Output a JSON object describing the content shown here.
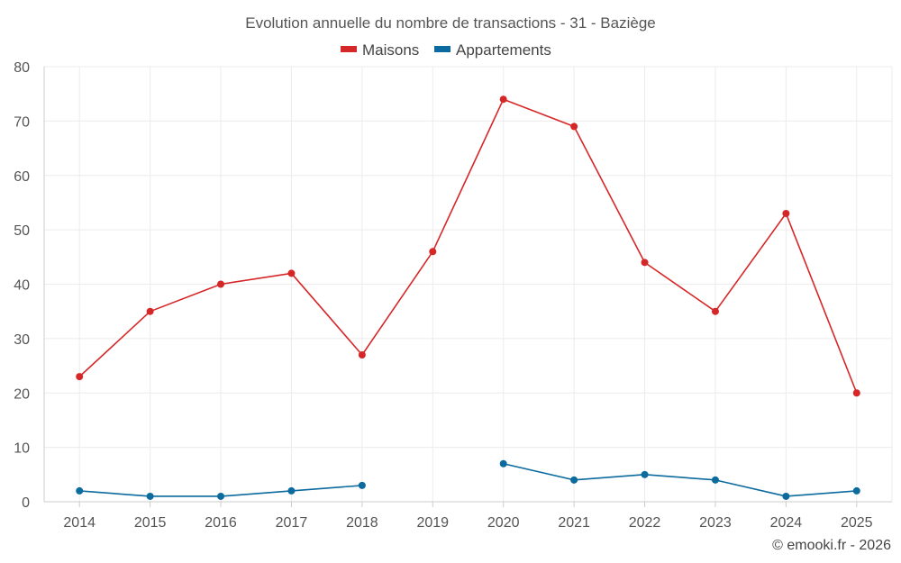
{
  "chart_data": {
    "type": "line",
    "title": "Evolution annuelle du nombre de transactions - 31 - Baziège",
    "categories": [
      "2014",
      "2015",
      "2016",
      "2017",
      "2018",
      "2019",
      "2020",
      "2021",
      "2022",
      "2023",
      "2024",
      "2025"
    ],
    "series": [
      {
        "name": "Maisons",
        "color": "#d62728",
        "values": [
          23,
          35,
          40,
          42,
          27,
          46,
          74,
          69,
          44,
          35,
          53,
          20
        ]
      },
      {
        "name": "Appartements",
        "color": "#0b6a9e",
        "values": [
          2,
          1,
          1,
          2,
          3,
          null,
          7,
          4,
          5,
          4,
          1,
          2
        ]
      }
    ],
    "ylim": [
      0,
      80
    ],
    "yticks": [
      0,
      10,
      20,
      30,
      40,
      50,
      60,
      70,
      80
    ],
    "xlabel": "",
    "ylabel": "",
    "grid": true,
    "legend": "top-center"
  },
  "credit": "© emooki.fr - 2026"
}
